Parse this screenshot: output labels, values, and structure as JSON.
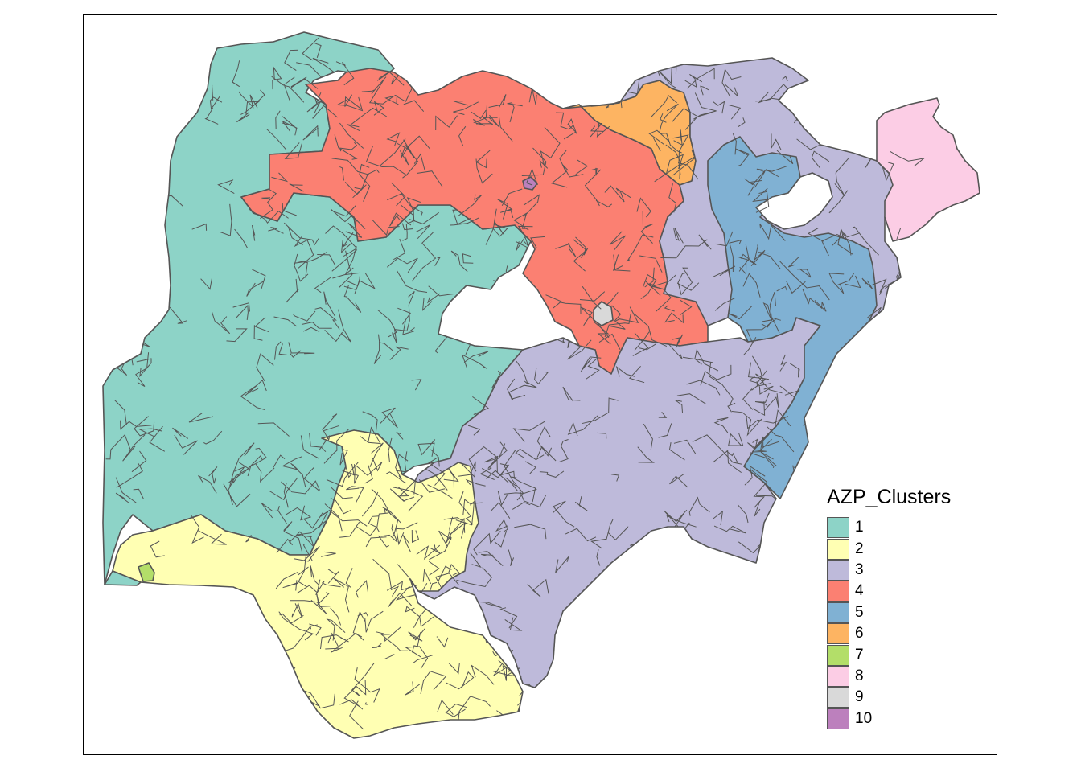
{
  "legend": {
    "title": "AZP_Clusters",
    "items": [
      {
        "label": "1",
        "color": "#8DD3C7"
      },
      {
        "label": "2",
        "color": "#FFFFB3"
      },
      {
        "label": "3",
        "color": "#BEBADA"
      },
      {
        "label": "4",
        "color": "#FB8072"
      },
      {
        "label": "5",
        "color": "#80B1D3"
      },
      {
        "label": "6",
        "color": "#FDB462"
      },
      {
        "label": "7",
        "color": "#B3DE69"
      },
      {
        "label": "8",
        "color": "#FCCDE5"
      },
      {
        "label": "9",
        "color": "#D9D9D9"
      },
      {
        "label": "10",
        "color": "#BC80BD"
      }
    ]
  },
  "map": {
    "border_color": "#555555",
    "background": "#ffffff"
  }
}
